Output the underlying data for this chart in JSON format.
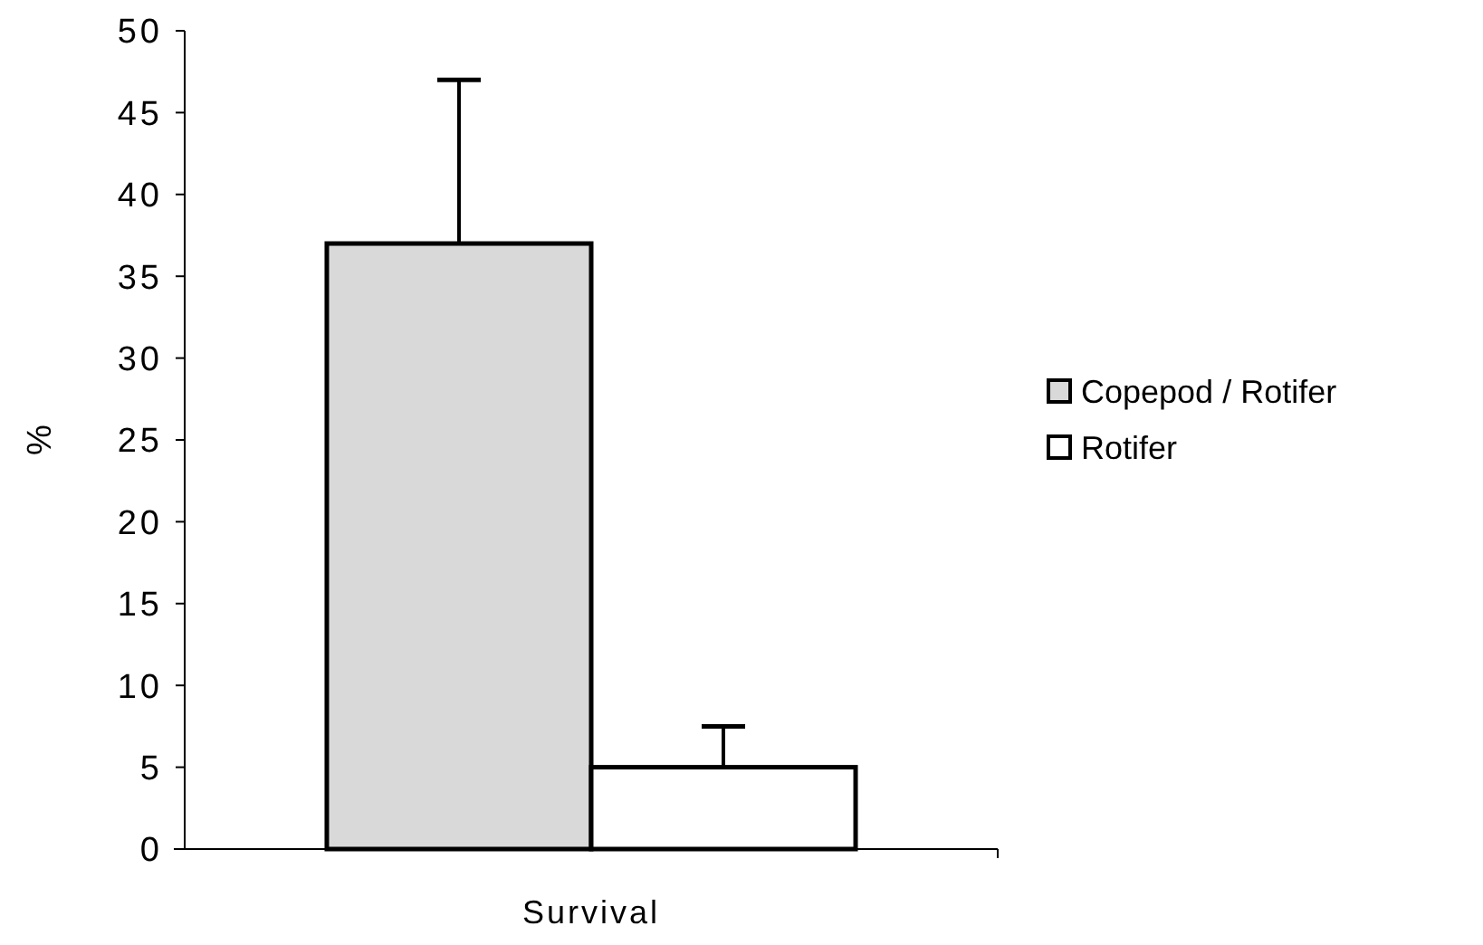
{
  "chart_data": {
    "type": "bar",
    "ylabel": "%",
    "categories": [
      "Survival"
    ],
    "series": [
      {
        "name": "Copepod / Rotifer",
        "color": "#d9d9d9",
        "values": [
          37
        ],
        "errors": [
          [
            37,
            47
          ]
        ]
      },
      {
        "name": "Rotifer",
        "color": "#ffffff",
        "values": [
          5
        ],
        "errors": [
          [
            5,
            7.5
          ]
        ]
      }
    ],
    "ylim": [
      0,
      50
    ],
    "yticks": [
      0,
      5,
      10,
      15,
      20,
      25,
      30,
      35,
      40,
      45,
      50
    ],
    "grid": false,
    "legend": "right"
  }
}
